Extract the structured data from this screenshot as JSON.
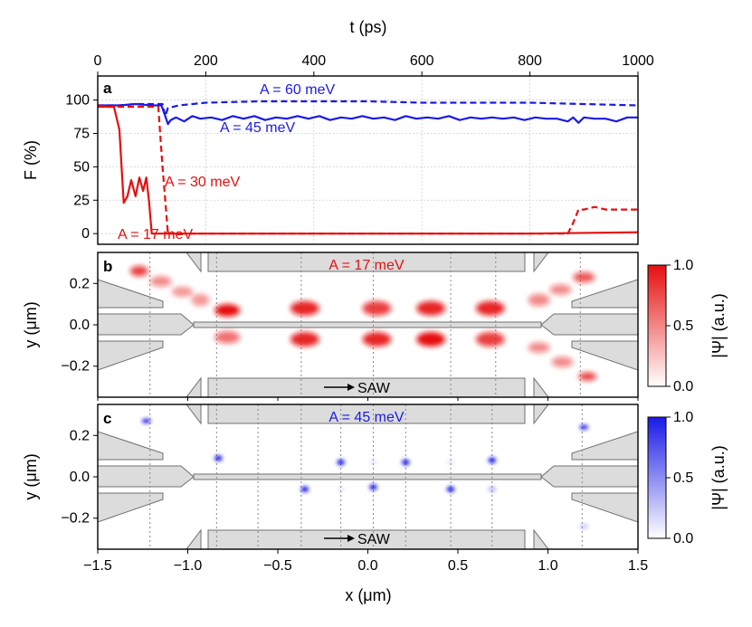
{
  "chart_data": [
    {
      "panel": "a",
      "type": "line",
      "xlabel_top": "t (ps)",
      "ylabel": "F (%)",
      "xlim": [
        0,
        1000
      ],
      "ylim": [
        -8,
        118
      ],
      "xticks": [
        "0",
        "200",
        "400",
        "600",
        "800",
        "1000"
      ],
      "yticks": [
        "0",
        "25",
        "50",
        "75",
        "100"
      ],
      "series": [
        {
          "name": "A = 60 meV",
          "color": "#1a1ae6",
          "style": "dashed",
          "x": [
            0,
            40,
            70,
            100,
            110,
            120,
            125,
            130,
            150,
            200,
            300,
            400,
            500,
            600,
            700,
            800,
            900,
            1000
          ],
          "y": [
            96,
            96,
            97,
            97,
            97,
            97,
            88,
            94,
            96,
            98,
            99,
            99,
            99,
            98,
            98,
            98,
            97,
            96
          ]
        },
        {
          "name": "A = 45 meV",
          "color": "#1a1ae6",
          "style": "solid",
          "x": [
            0,
            40,
            70,
            100,
            118,
            125,
            130,
            135,
            145,
            160,
            175,
            190,
            210,
            230,
            250,
            270,
            290,
            310,
            330,
            350,
            370,
            390,
            410,
            430,
            450,
            470,
            490,
            510,
            530,
            550,
            570,
            590,
            610,
            630,
            650,
            670,
            690,
            710,
            730,
            750,
            770,
            790,
            810,
            830,
            850,
            870,
            880,
            890,
            900,
            920,
            940,
            960,
            980,
            1000
          ],
          "y": [
            96,
            96,
            97,
            96,
            96,
            88,
            82,
            85,
            87,
            84,
            88,
            86,
            87,
            85,
            88,
            86,
            88,
            85,
            87,
            86,
            88,
            86,
            88,
            85,
            87,
            86,
            88,
            86,
            87,
            85,
            88,
            86,
            87,
            86,
            88,
            85,
            87,
            86,
            87,
            86,
            87,
            85,
            87,
            86,
            86,
            84,
            87,
            83,
            87,
            86,
            86,
            84,
            87,
            87
          ]
        },
        {
          "name": "A = 30 meV",
          "color": "#e60f0f",
          "style": "dashed",
          "x": [
            0,
            50,
            100,
            108,
            112,
            120,
            130,
            200,
            400,
            600,
            800,
            870,
            880,
            890,
            900,
            920,
            940,
            960,
            980,
            1000
          ],
          "y": [
            95,
            95,
            95,
            95,
            95,
            50,
            0,
            0,
            0,
            0,
            0,
            0,
            8,
            18,
            18,
            20,
            18,
            18,
            18,
            18
          ]
        },
        {
          "name": "A = 17 meV",
          "color": "#e60f0f",
          "style": "solid",
          "x": [
            0,
            15,
            30,
            40,
            48,
            55,
            62,
            70,
            77,
            84,
            90,
            95,
            100,
            105,
            200,
            400,
            600,
            800,
            1000
          ],
          "y": [
            96,
            95,
            95,
            78,
            23,
            28,
            40,
            28,
            42,
            32,
            42,
            24,
            0,
            0,
            0,
            0,
            0,
            0,
            1
          ]
        }
      ],
      "annotations": [
        {
          "text": "A = 60 meV",
          "color": "#1a1ae6"
        },
        {
          "text": "A = 45 meV",
          "color": "#1a1ae6"
        },
        {
          "text": "A = 30 meV",
          "color": "#e60f0f"
        },
        {
          "text": "A = 17 meV",
          "color": "#e60f0f"
        }
      ]
    },
    {
      "panel": "b",
      "type": "heatmap",
      "title": "A = 17 meV",
      "color": "#e60f0f",
      "xlim": [
        -1.5,
        1.5
      ],
      "ylim": [
        -0.35,
        0.35
      ],
      "yticks": [
        "0.2",
        "0.0",
        "−0.2"
      ],
      "ylabel": "y (μm)",
      "colorbar_label": "|Ψ| (a.u.)",
      "colorbar_ticks": [
        "1.0",
        "0.5",
        "0.0"
      ],
      "annotation": "SAW",
      "marker_x": [
        -1.21,
        -0.84,
        -0.37,
        0.03,
        0.46,
        0.71,
        1.18
      ],
      "blobs": [
        {
          "x": -1.27,
          "y": 0.26,
          "w": 0.05,
          "h": 0.025,
          "a": 0.8
        },
        {
          "x": -1.15,
          "y": 0.21,
          "w": 0.06,
          "h": 0.025,
          "a": 0.5
        },
        {
          "x": -1.03,
          "y": 0.16,
          "w": 0.06,
          "h": 0.025,
          "a": 0.4
        },
        {
          "x": -0.93,
          "y": 0.12,
          "w": 0.05,
          "h": 0.03,
          "a": 0.4
        },
        {
          "x": -0.78,
          "y": 0.07,
          "w": 0.07,
          "h": 0.03,
          "a": 1.0
        },
        {
          "x": -0.78,
          "y": -0.06,
          "w": 0.07,
          "h": 0.03,
          "a": 0.6
        },
        {
          "x": -0.35,
          "y": 0.08,
          "w": 0.08,
          "h": 0.035,
          "a": 0.9
        },
        {
          "x": -0.35,
          "y": -0.07,
          "w": 0.08,
          "h": 0.035,
          "a": 0.9
        },
        {
          "x": 0.05,
          "y": 0.08,
          "w": 0.08,
          "h": 0.035,
          "a": 0.8
        },
        {
          "x": 0.05,
          "y": -0.07,
          "w": 0.08,
          "h": 0.035,
          "a": 0.9
        },
        {
          "x": 0.35,
          "y": 0.08,
          "w": 0.08,
          "h": 0.035,
          "a": 0.9
        },
        {
          "x": 0.35,
          "y": -0.07,
          "w": 0.08,
          "h": 0.035,
          "a": 1.0
        },
        {
          "x": 0.68,
          "y": 0.08,
          "w": 0.08,
          "h": 0.035,
          "a": 0.9
        },
        {
          "x": 0.68,
          "y": -0.07,
          "w": 0.08,
          "h": 0.035,
          "a": 0.8
        },
        {
          "x": 0.95,
          "y": 0.12,
          "w": 0.06,
          "h": 0.03,
          "a": 0.5
        },
        {
          "x": 1.07,
          "y": 0.17,
          "w": 0.06,
          "h": 0.025,
          "a": 0.5
        },
        {
          "x": 1.2,
          "y": 0.23,
          "w": 0.06,
          "h": 0.025,
          "a": 0.7
        },
        {
          "x": 0.95,
          "y": -0.11,
          "w": 0.06,
          "h": 0.025,
          "a": 0.5
        },
        {
          "x": 1.08,
          "y": -0.18,
          "w": 0.06,
          "h": 0.025,
          "a": 0.5
        },
        {
          "x": 1.22,
          "y": -0.25,
          "w": 0.05,
          "h": 0.02,
          "a": 0.8
        }
      ]
    },
    {
      "panel": "c",
      "type": "heatmap",
      "title": "A = 45 meV",
      "color": "#1a1ae6",
      "xlim": [
        -1.5,
        1.5
      ],
      "ylim": [
        -0.35,
        0.35
      ],
      "xticks": [
        "−1.5",
        "−1.0",
        "−0.5",
        "0.0",
        "0.5",
        "1.0",
        "1.5"
      ],
      "yticks": [
        "0.2",
        "0.0",
        "−0.2"
      ],
      "ylabel": "y (μm)",
      "xlabel": "x (μm)",
      "colorbar_label": "|Ψ| (a.u.)",
      "colorbar_ticks": [
        "1.0",
        "0.5",
        "0.0"
      ],
      "annotation": "SAW",
      "marker_x": [
        -1.21,
        -0.84,
        -0.61,
        -0.37,
        -0.15,
        0.03,
        0.21,
        0.46,
        0.69,
        1.19
      ],
      "blobs": [
        {
          "x": -1.23,
          "y": 0.27,
          "w": 0.025,
          "h": 0.012,
          "a": 0.9
        },
        {
          "x": -0.83,
          "y": 0.09,
          "w": 0.022,
          "h": 0.014,
          "a": 1.0
        },
        {
          "x": -0.35,
          "y": -0.06,
          "w": 0.022,
          "h": 0.014,
          "a": 1.0
        },
        {
          "x": -0.15,
          "y": 0.07,
          "w": 0.022,
          "h": 0.014,
          "a": 1.0
        },
        {
          "x": 0.03,
          "y": -0.05,
          "w": 0.022,
          "h": 0.014,
          "a": 1.0
        },
        {
          "x": 0.21,
          "y": 0.07,
          "w": 0.022,
          "h": 0.014,
          "a": 1.0
        },
        {
          "x": 0.46,
          "y": -0.06,
          "w": 0.022,
          "h": 0.014,
          "a": 1.0
        },
        {
          "x": 0.69,
          "y": 0.08,
          "w": 0.022,
          "h": 0.014,
          "a": 1.0
        },
        {
          "x": 0.69,
          "y": -0.06,
          "w": 0.022,
          "h": 0.014,
          "a": 0.3
        },
        {
          "x": 1.2,
          "y": 0.24,
          "w": 0.025,
          "h": 0.012,
          "a": 0.9
        },
        {
          "x": 1.2,
          "y": -0.24,
          "w": 0.025,
          "h": 0.012,
          "a": 0.25
        },
        {
          "x": -0.15,
          "y": -0.06,
          "w": 0.02,
          "h": 0.012,
          "a": 0.1
        },
        {
          "x": 0.03,
          "y": 0.07,
          "w": 0.02,
          "h": 0.012,
          "a": 0.1
        },
        {
          "x": 0.46,
          "y": 0.07,
          "w": 0.02,
          "h": 0.012,
          "a": 0.1
        }
      ]
    }
  ]
}
